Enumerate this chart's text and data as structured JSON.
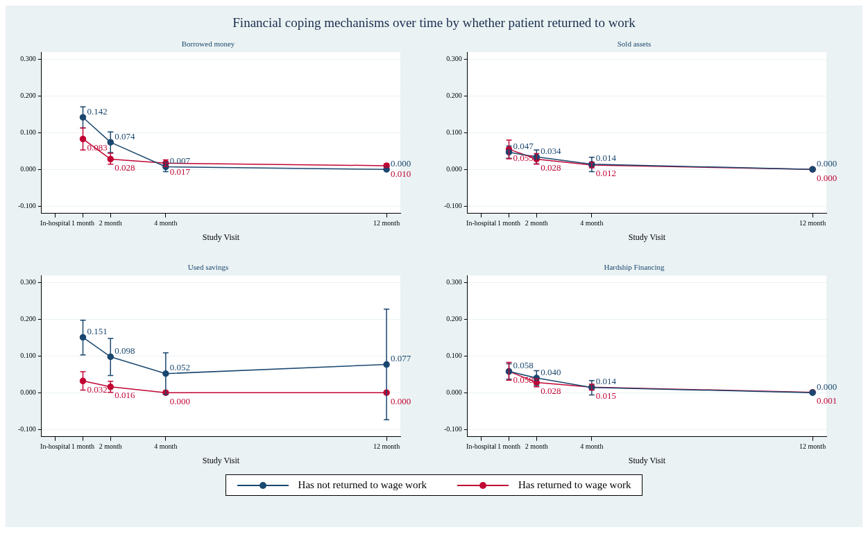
{
  "chart_data": [
    {
      "type": "line",
      "title": "Financial coping mechanisms over time by whether patient returned to work",
      "subtitle": "Borrowed money",
      "xlabel": "Study Visit",
      "x": [
        1,
        2,
        4,
        12
      ],
      "xlim": [
        -0.5,
        12.5
      ],
      "xticks": [
        {
          "value": 0,
          "label": "In-hospital"
        },
        {
          "value": 1,
          "label": "1 month"
        },
        {
          "value": 2,
          "label": "2 month"
        },
        {
          "value": 4,
          "label": "4 month"
        },
        {
          "value": 12,
          "label": "12 month"
        }
      ],
      "ylim": [
        -0.12,
        0.32
      ],
      "yticks": [
        {
          "value": -0.1,
          "label": "-0.100"
        },
        {
          "value": 0,
          "label": "0.000"
        },
        {
          "value": 0.1,
          "label": "0.100"
        },
        {
          "value": 0.2,
          "label": "0.200"
        },
        {
          "value": 0.3,
          "label": "0.300"
        }
      ],
      "grid": "y",
      "marker": "circle",
      "line_style": "solid",
      "legend": "bottom",
      "series": [
        {
          "name": "Has not returned to wage work",
          "color": "#1a476f",
          "values": [
            0.142,
            0.074,
            0.007,
            0.0
          ],
          "errors": [
            [
              0.113,
              0.171
            ],
            [
              0.046,
              0.102
            ],
            [
              -0.006,
              0.02
            ],
            null
          ],
          "value_labels": [
            "0.142",
            "0.074",
            "0.007",
            "0.000"
          ]
        },
        {
          "name": "Has returned to wage work",
          "color": "#c10534",
          "values": [
            0.083,
            0.028,
            0.017,
            0.01
          ],
          "errors": [
            [
              0.053,
              0.113
            ],
            [
              0.014,
              0.044
            ],
            [
              0.008,
              0.026
            ],
            [
              0.005,
              0.015
            ]
          ],
          "value_labels": [
            "0.083",
            "0.028",
            "0.017",
            "0.010"
          ]
        }
      ]
    },
    {
      "type": "line",
      "subtitle": "Sold assets",
      "xlabel": "Study Visit",
      "x": [
        1,
        2,
        4,
        12
      ],
      "xlim": [
        -0.5,
        12.5
      ],
      "xticks": [
        {
          "value": 0,
          "label": "In-hospital"
        },
        {
          "value": 1,
          "label": "1 month"
        },
        {
          "value": 2,
          "label": "2 month"
        },
        {
          "value": 4,
          "label": "4 month"
        },
        {
          "value": 12,
          "label": "12 month"
        }
      ],
      "ylim": [
        -0.12,
        0.32
      ],
      "yticks": [
        {
          "value": -0.1,
          "label": "-0.100"
        },
        {
          "value": 0,
          "label": "0.000"
        },
        {
          "value": 0.1,
          "label": "0.100"
        },
        {
          "value": 0.2,
          "label": "0.200"
        },
        {
          "value": 0.3,
          "label": "0.300"
        }
      ],
      "grid": "y",
      "marker": "circle",
      "line_style": "solid",
      "series": [
        {
          "color": "#1a476f",
          "values": [
            0.047,
            0.034,
            0.014,
            0.0
          ],
          "errors": [
            [
              0.03,
              0.064
            ],
            [
              0.015,
              0.053
            ],
            [
              -0.006,
              0.033
            ],
            null
          ],
          "value_labels": [
            "0.047",
            "0.034",
            "0.014",
            "0.000"
          ]
        },
        {
          "color": "#c10534",
          "values": [
            0.055,
            0.028,
            0.012,
            0.0
          ],
          "errors": [
            [
              0.029,
              0.08
            ],
            [
              0.014,
              0.043
            ],
            [
              0.004,
              0.02
            ],
            null
          ],
          "value_labels": [
            "0.055",
            "0.028",
            "0.012",
            "0.000"
          ]
        }
      ]
    },
    {
      "type": "line",
      "subtitle": "Used savings",
      "xlabel": "Study Visit",
      "x": [
        1,
        2,
        4,
        12
      ],
      "xlim": [
        -0.5,
        12.5
      ],
      "xticks": [
        {
          "value": 0,
          "label": "In-hospital"
        },
        {
          "value": 1,
          "label": "1 month"
        },
        {
          "value": 2,
          "label": "2 month"
        },
        {
          "value": 4,
          "label": "4 month"
        },
        {
          "value": 12,
          "label": "12 month"
        }
      ],
      "ylim": [
        -0.12,
        0.32
      ],
      "yticks": [
        {
          "value": -0.1,
          "label": "-0.100"
        },
        {
          "value": 0,
          "label": "0.000"
        },
        {
          "value": 0.1,
          "label": "0.100"
        },
        {
          "value": 0.2,
          "label": "0.200"
        },
        {
          "value": 0.3,
          "label": "0.300"
        }
      ],
      "grid": "y",
      "marker": "circle",
      "line_style": "solid",
      "series": [
        {
          "color": "#1a476f",
          "values": [
            0.151,
            0.098,
            0.052,
            0.077
          ],
          "errors": [
            [
              0.103,
              0.198
            ],
            [
              0.047,
              0.148
            ],
            [
              -0.005,
              0.109
            ],
            [
              -0.074,
              0.228
            ]
          ],
          "value_labels": [
            "0.151",
            "0.098",
            "0.052",
            "0.077"
          ]
        },
        {
          "color": "#c10534",
          "values": [
            0.032,
            0.016,
            0.0,
            0.0
          ],
          "errors": [
            [
              0.007,
              0.057
            ],
            [
              0.001,
              0.031
            ],
            null,
            null
          ],
          "value_labels": [
            "0.032",
            "0.016",
            "0.000",
            "0.000"
          ]
        }
      ]
    },
    {
      "type": "line",
      "subtitle": "Hardship Financing",
      "xlabel": "Study Visit",
      "x": [
        1,
        2,
        4,
        12
      ],
      "xlim": [
        -0.5,
        12.5
      ],
      "xticks": [
        {
          "value": 0,
          "label": "In-hospital"
        },
        {
          "value": 1,
          "label": "1 month"
        },
        {
          "value": 2,
          "label": "2 month"
        },
        {
          "value": 4,
          "label": "4 month"
        },
        {
          "value": 12,
          "label": "12 month"
        }
      ],
      "ylim": [
        -0.12,
        0.32
      ],
      "yticks": [
        {
          "value": -0.1,
          "label": "-0.100"
        },
        {
          "value": 0,
          "label": "0.000"
        },
        {
          "value": 0.1,
          "label": "0.100"
        },
        {
          "value": 0.2,
          "label": "0.200"
        },
        {
          "value": 0.3,
          "label": "0.300"
        }
      ],
      "grid": "y",
      "marker": "circle",
      "line_style": "solid",
      "series": [
        {
          "color": "#1a476f",
          "values": [
            0.058,
            0.04,
            0.014,
            0.0
          ],
          "errors": [
            [
              0.037,
              0.079
            ],
            [
              0.02,
              0.06
            ],
            [
              -0.006,
              0.033
            ],
            null
          ],
          "value_labels": [
            "0.058",
            "0.040",
            "0.014",
            "0.000"
          ]
        },
        {
          "color": "#c10534",
          "values": [
            0.058,
            0.028,
            0.015,
            0.001
          ],
          "errors": [
            [
              0.034,
              0.083
            ],
            [
              0.016,
              0.038
            ],
            [
              0.007,
              0.023
            ],
            null
          ],
          "value_labels": [
            "0.058",
            "0.028",
            "0.015",
            "0.001"
          ]
        }
      ]
    }
  ]
}
